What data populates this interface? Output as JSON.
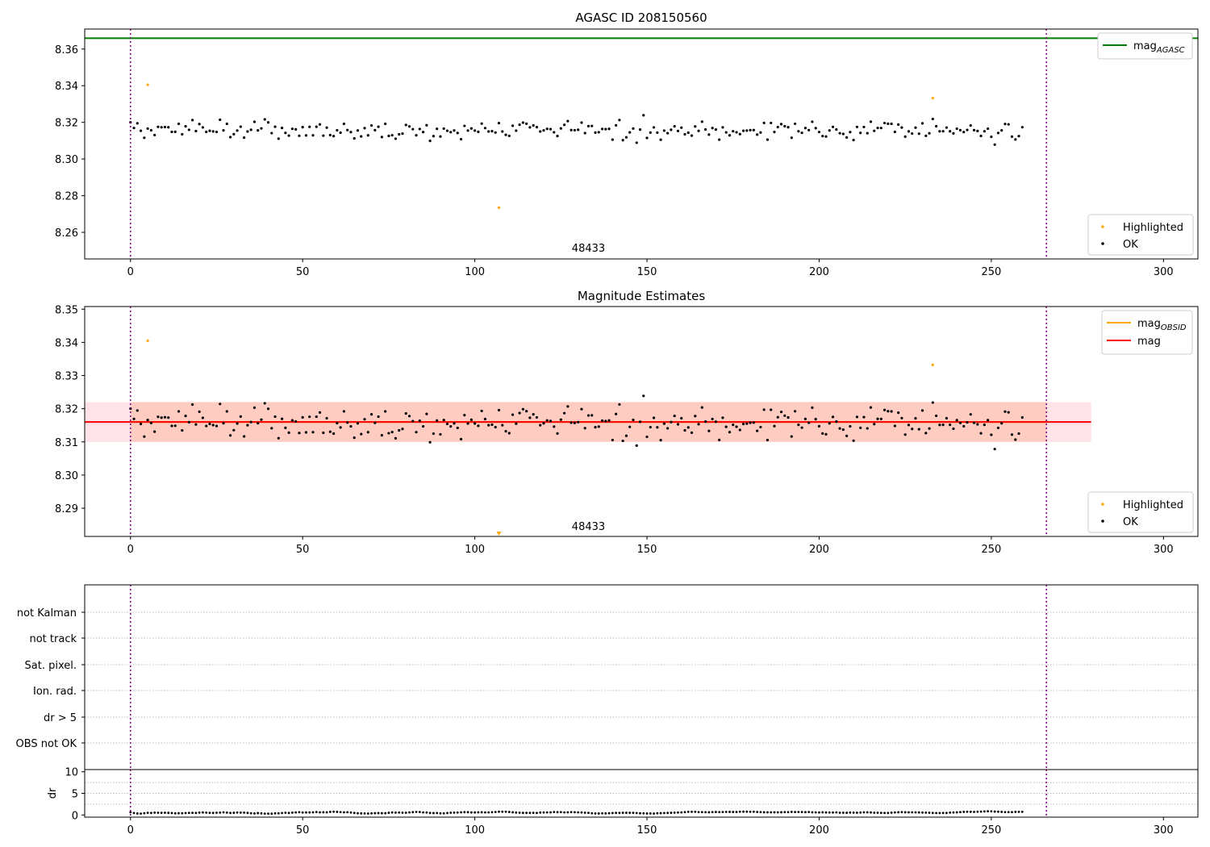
{
  "chart_data": [
    {
      "type": "scatter",
      "title": "AGASC ID 208150560",
      "xlim": [
        -13.3,
        310
      ],
      "ylim": [
        8.2455,
        8.3709
      ],
      "xticks": [
        0,
        50,
        100,
        150,
        200,
        250,
        300
      ],
      "yticks": [
        8.26,
        8.28,
        8.3,
        8.32,
        8.34,
        8.36
      ],
      "ytick_labels": [
        "8.26",
        "8.28",
        "8.30",
        "8.32",
        "8.34",
        "8.36"
      ],
      "grid": false,
      "obsid_label": "48433",
      "obsid_label_x": 133,
      "vlines": [
        0,
        266
      ],
      "hlines": [
        {
          "name": "mag_AGASC",
          "y": 8.3659,
          "color": "#008000"
        }
      ],
      "legend_upper": {
        "placement": "top-right",
        "entries": [
          {
            "label": "mag",
            "sub": "AGASC",
            "color": "#008000"
          }
        ]
      },
      "legend_lower": {
        "placement": "bottom-right",
        "entries": [
          {
            "label": "Highlighted",
            "color": "#FFA500"
          },
          {
            "label": "OK",
            "color": "#000000"
          }
        ]
      },
      "highlighted_points": [
        [
          5,
          8.3405
        ],
        [
          107,
          8.2735
        ],
        [
          233,
          8.3332
        ]
      ]
    },
    {
      "type": "scatter",
      "title": "Magnitude Estimates",
      "xlim": [
        -13.3,
        310
      ],
      "ylim": [
        8.2815,
        8.3508
      ],
      "xticks": [
        0,
        50,
        100,
        150,
        200,
        250,
        300
      ],
      "yticks": [
        8.29,
        8.3,
        8.31,
        8.32,
        8.33,
        8.34,
        8.35
      ],
      "ytick_labels": [
        "8.29",
        "8.30",
        "8.31",
        "8.32",
        "8.33",
        "8.34",
        "8.35"
      ],
      "grid": false,
      "obsid_label": "48433",
      "obsid_label_x": 133,
      "vlines": [
        0,
        266
      ],
      "mag": {
        "value": 8.316,
        "band_low": 8.31,
        "band_high": 8.322,
        "x_end": 279,
        "color": "#FF0000"
      },
      "mag_obsid": {
        "value": 8.316,
        "band_low": 8.31,
        "band_high": 8.322,
        "x_start": 0,
        "x_end": 266,
        "color": "#FFA500"
      },
      "legend_upper": {
        "placement": "top-right",
        "entries": [
          {
            "label": "mag",
            "sub": "OBSID",
            "color": "#FFA500"
          },
          {
            "label": "mag",
            "sub": "",
            "color": "#FF0000"
          }
        ]
      },
      "legend_lower": {
        "placement": "bottom-right",
        "entries": [
          {
            "label": "Highlighted",
            "color": "#FFA500"
          },
          {
            "label": "OK",
            "color": "#000000"
          }
        ]
      },
      "highlighted_points": [
        [
          5,
          8.3405
        ],
        [
          233,
          8.3332
        ]
      ],
      "offscale_marker": {
        "x": 107,
        "color": "#FFA500"
      }
    },
    {
      "type": "scatter",
      "title": "",
      "flag_rows": [
        "OBS not OK",
        "dr > 5",
        "Ion. rad.",
        "Sat. pixel.",
        "not track",
        "not Kalman"
      ],
      "vlines": [
        0,
        266
      ],
      "grid": true
    },
    {
      "type": "scatter",
      "title": "",
      "ylabel": "dr",
      "xlim": [
        -13.3,
        310
      ],
      "ylim": [
        -0.5,
        10.5
      ],
      "xticks": [
        0,
        50,
        100,
        150,
        200,
        250,
        300
      ],
      "yticks": [
        0,
        5,
        10
      ],
      "ytick_labels": [
        "0",
        "5",
        "10"
      ],
      "vlines": [
        0,
        266
      ],
      "grid": true,
      "dr_values": [
        0.65,
        0.45,
        0.35,
        0.32,
        0.41,
        0.5,
        0.47,
        0.55,
        0.53,
        0.5,
        0.52,
        0.49,
        0.45,
        0.38,
        0.42,
        0.4,
        0.45,
        0.48,
        0.5,
        0.48,
        0.54,
        0.58,
        0.55,
        0.5,
        0.47,
        0.52,
        0.55,
        0.62,
        0.55,
        0.47,
        0.51,
        0.57,
        0.55,
        0.55,
        0.49,
        0.4,
        0.36,
        0.44,
        0.37,
        0.32,
        0.31,
        0.3,
        0.39,
        0.39,
        0.46,
        0.52,
        0.47,
        0.54,
        0.59,
        0.64,
        0.57,
        0.58,
        0.58,
        0.62,
        0.68,
        0.61,
        0.63,
        0.62,
        0.71,
        0.75,
        0.72,
        0.66,
        0.62,
        0.64,
        0.57,
        0.48,
        0.41,
        0.37,
        0.36,
        0.34,
        0.39,
        0.42,
        0.44,
        0.42,
        0.42,
        0.51,
        0.58,
        0.55,
        0.57,
        0.52,
        0.52,
        0.59,
        0.65,
        0.71,
        0.69,
        0.6,
        0.57,
        0.48,
        0.44,
        0.46,
        0.39,
        0.39,
        0.46,
        0.52,
        0.55,
        0.57,
        0.62,
        0.65,
        0.65,
        0.58,
        0.58,
        0.61,
        0.63,
        0.6,
        0.6,
        0.64,
        0.69,
        0.75,
        0.75,
        0.76,
        0.7,
        0.63,
        0.56,
        0.52,
        0.49,
        0.5,
        0.49,
        0.5,
        0.47,
        0.56,
        0.58,
        0.6,
        0.61,
        0.68,
        0.65,
        0.66,
        0.6,
        0.62,
        0.66,
        0.64,
        0.6,
        0.58,
        0.53,
        0.5,
        0.41,
        0.36,
        0.35,
        0.38,
        0.37,
        0.4,
        0.46,
        0.49,
        0.47,
        0.51,
        0.51,
        0.5,
        0.5,
        0.45,
        0.4,
        0.39,
        0.35,
        0.36,
        0.33,
        0.41,
        0.42,
        0.46,
        0.48,
        0.51,
        0.54,
        0.57,
        0.6,
        0.66,
        0.74,
        0.74,
        0.73,
        0.67,
        0.66,
        0.64,
        0.63,
        0.67,
        0.7,
        0.66,
        0.69,
        0.71,
        0.72,
        0.7,
        0.7,
        0.75,
        0.77,
        0.76,
        0.73,
        0.75,
        0.7,
        0.66,
        0.63,
        0.62,
        0.62,
        0.63,
        0.61,
        0.63,
        0.66,
        0.67,
        0.72,
        0.68,
        0.69,
        0.68,
        0.65,
        0.68,
        0.62,
        0.6,
        0.58,
        0.61,
        0.58,
        0.57,
        0.57,
        0.6,
        0.52,
        0.53,
        0.51,
        0.56,
        0.54,
        0.52,
        0.56,
        0.62,
        0.62,
        0.58,
        0.53,
        0.53,
        0.5,
        0.48,
        0.48,
        0.54,
        0.59,
        0.63,
        0.66,
        0.63,
        0.61,
        0.62,
        0.6,
        0.58,
        0.56,
        0.54,
        0.53,
        0.47,
        0.45,
        0.45,
        0.48,
        0.48,
        0.55,
        0.58,
        0.61,
        0.67,
        0.72,
        0.75,
        0.74,
        0.71,
        0.75,
        0.78,
        0.83,
        0.86,
        0.85,
        0.79,
        0.75,
        0.72,
        0.67,
        0.66,
        0.67,
        0.72,
        0.74,
        0.73
      ]
    }
  ]
}
